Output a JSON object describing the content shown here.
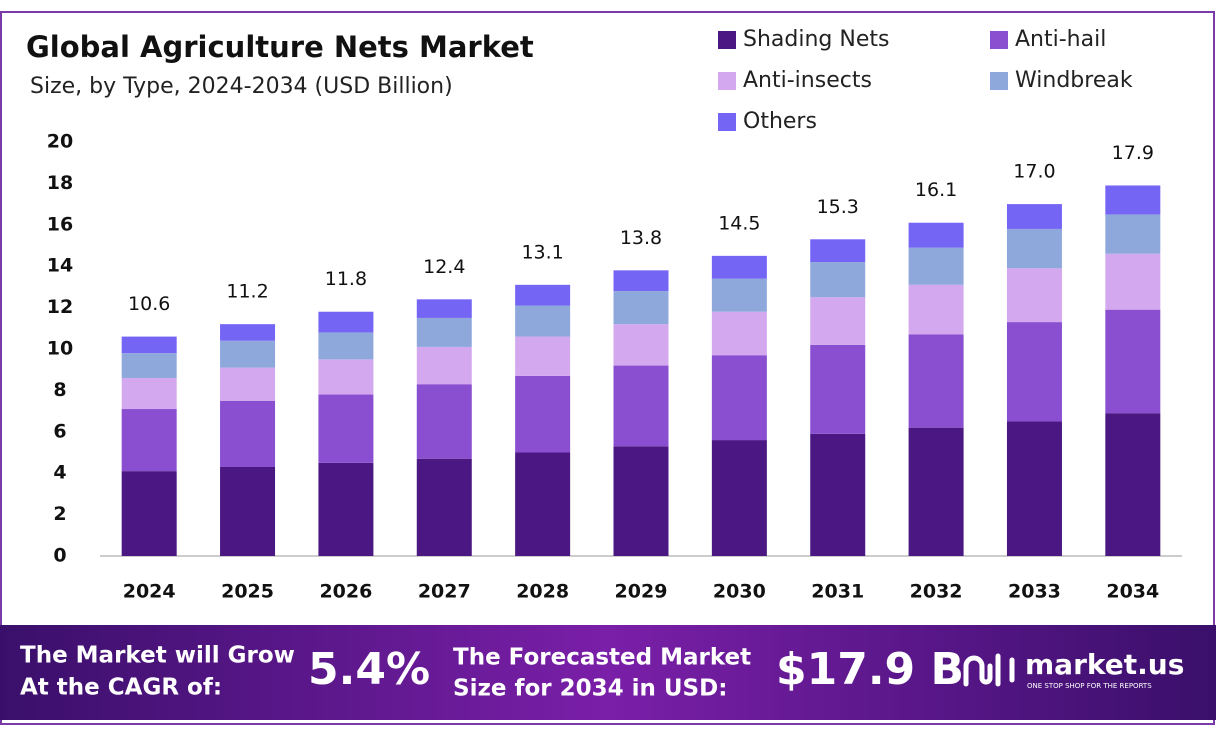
{
  "chart_data": {
    "type": "stacked-bar",
    "title": "Global Agriculture Nets Market",
    "subtitle": "Size, by Type, 2024-2034 (USD Billion)",
    "categories": [
      "2024",
      "2025",
      "2026",
      "2027",
      "2028",
      "2029",
      "2030",
      "2031",
      "2032",
      "2033",
      "2034"
    ],
    "series": [
      {
        "name": "Shading Nets",
        "color": "#4b1782",
        "values": [
          4.1,
          4.3,
          4.5,
          4.7,
          5.0,
          5.3,
          5.6,
          5.9,
          6.2,
          6.5,
          6.9
        ]
      },
      {
        "name": "Anti-hail",
        "color": "#8a4fd0",
        "values": [
          3.0,
          3.2,
          3.3,
          3.6,
          3.7,
          3.9,
          4.1,
          4.3,
          4.5,
          4.8,
          5.0
        ]
      },
      {
        "name": "Anti-insects",
        "color": "#d3a8ee",
        "values": [
          1.5,
          1.6,
          1.7,
          1.8,
          1.9,
          2.0,
          2.1,
          2.3,
          2.4,
          2.6,
          2.7
        ]
      },
      {
        "name": "Windbreak",
        "color": "#8fa8dc",
        "values": [
          1.2,
          1.3,
          1.3,
          1.4,
          1.5,
          1.6,
          1.6,
          1.7,
          1.8,
          1.9,
          1.9
        ]
      },
      {
        "name": "Others",
        "color": "#7565f5",
        "values": [
          0.8,
          0.8,
          1.0,
          0.9,
          1.0,
          1.0,
          1.1,
          1.1,
          1.2,
          1.2,
          1.4
        ]
      }
    ],
    "totals": [
      10.6,
      11.2,
      11.8,
      12.4,
      13.1,
      13.8,
      14.5,
      15.3,
      16.1,
      17.0,
      17.9
    ],
    "total_labels": [
      "10.6",
      "11.2",
      "11.8",
      "12.4",
      "13.1",
      "13.8",
      "14.5",
      "15.3",
      "16.1",
      "17.0",
      "17.9"
    ],
    "ylim": [
      0,
      20
    ],
    "yticks": [
      0,
      2,
      4,
      6,
      8,
      10,
      12,
      14,
      16,
      18,
      20
    ],
    "grid": false
  },
  "footer": {
    "cagr_text_1": "The Market will Grow",
    "cagr_text_2": "At the CAGR of:",
    "cagr": "5.4%",
    "forecast_text_1": "The Forecasted Market",
    "forecast_text_2": "Size for 2034 in USD:",
    "forecast": "$17.9 B",
    "brand": "market.us",
    "tagline": "ONE STOP SHOP FOR THE REPORTS"
  }
}
